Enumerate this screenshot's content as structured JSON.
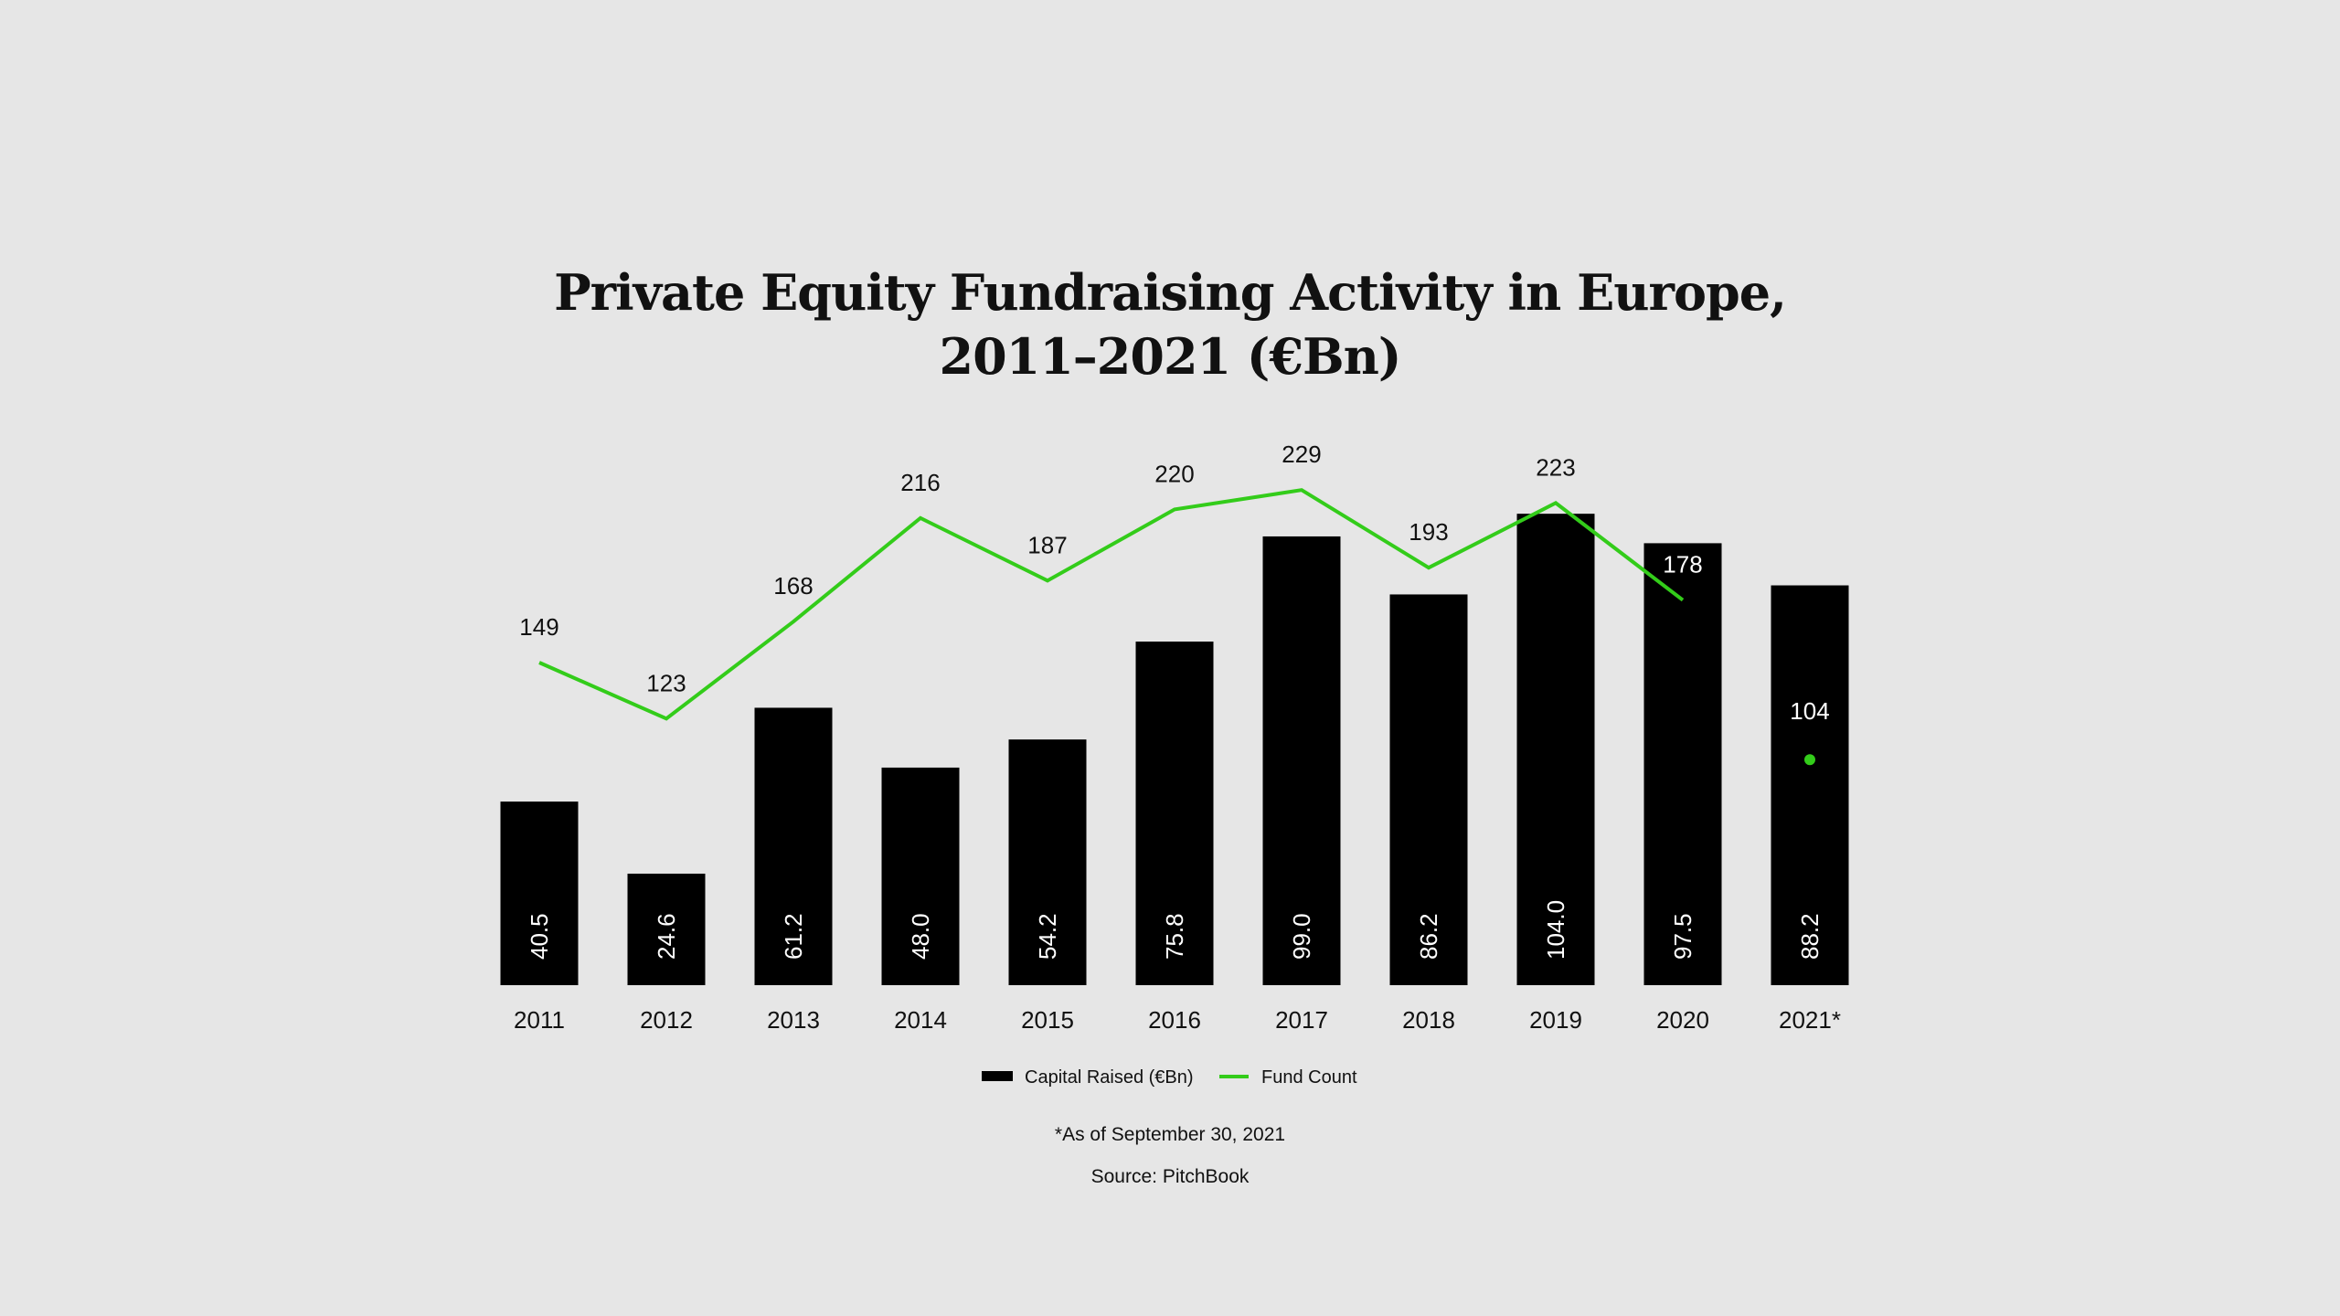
{
  "chart_data": {
    "type": "bar",
    "title_line1": "Private Equity Fundraising Activity in Europe,",
    "title_line2": "2011–2021 (€Bn)",
    "categories": [
      "2011",
      "2012",
      "2013",
      "2014",
      "2015",
      "2016",
      "2017",
      "2018",
      "2019",
      "2020",
      "2021*"
    ],
    "series": [
      {
        "name": "Capital Raised (€Bn)",
        "type": "bar",
        "color": "#000000",
        "values": [
          40.5,
          24.6,
          61.2,
          48.0,
          54.2,
          75.8,
          99.0,
          86.2,
          104.0,
          97.5,
          88.2
        ],
        "labels": [
          "40.5",
          "24.6",
          "61.2",
          "48.0",
          "54.2",
          "75.8",
          "99.0",
          "86.2",
          "104.0",
          "97.5",
          "88.2"
        ]
      },
      {
        "name": "Fund Count",
        "type": "line",
        "color": "#33cc1a",
        "values": [
          149,
          123,
          168,
          216,
          187,
          220,
          229,
          193,
          223,
          178,
          104
        ],
        "labels": [
          "149",
          "123",
          "168",
          "216",
          "187",
          "220",
          "229",
          "193",
          "223",
          "178",
          "104"
        ]
      }
    ],
    "xlabel": "",
    "ylabel": "",
    "legend_position": "bottom-center",
    "grid": false
  },
  "footnote": "*As of September 30, 2021",
  "source": "Source: PitchBook"
}
